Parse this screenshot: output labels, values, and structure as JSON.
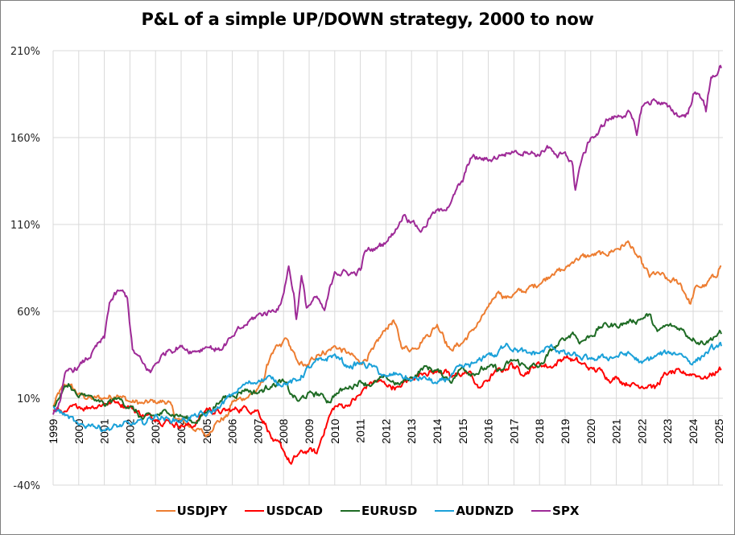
{
  "chart_data": {
    "type": "line",
    "title": "P&L of a simple UP/DOWN strategy, 2000 to now",
    "xlabel": "",
    "ylabel": "",
    "ylim": [
      -40,
      210
    ],
    "xlim": [
      1999,
      2025.2
    ],
    "y_ticks": [
      "210%",
      "160%",
      "110%",
      "60%",
      "10%",
      "-40%"
    ],
    "y_tick_values": [
      210,
      160,
      110,
      60,
      10,
      -40
    ],
    "x_ticks": [
      "1999",
      "2000",
      "2001",
      "2002",
      "2003",
      "2004",
      "2005",
      "2006",
      "2007",
      "2008",
      "2009",
      "2010",
      "2011",
      "2012",
      "2013",
      "2014",
      "2015",
      "2016",
      "2017",
      "2018",
      "2019",
      "2020",
      "2021",
      "2022",
      "2023",
      "2024",
      "2025"
    ],
    "grid": true,
    "zero_line": true,
    "legend_position": "bottom",
    "series": [
      {
        "name": "USDJPY",
        "color": "#ED7D31",
        "x": [
          1999,
          1999.3,
          1999.6,
          2000,
          2000.5,
          2001,
          2001.5,
          2002,
          2002.5,
          2003,
          2003.5,
          2003.8,
          2004.2,
          2004.6,
          2005,
          2005.3,
          2005.8,
          2006,
          2006.5,
          2007,
          2007.2,
          2007.5,
          2007.9,
          2008.1,
          2008.5,
          2008.9,
          2009.3,
          2009.8,
          2010,
          2010.5,
          2011,
          2011.5,
          2012,
          2012.3,
          2012.6,
          2013,
          2013.5,
          2014,
          2014.2,
          2014.5,
          2015,
          2015.3,
          2015.7,
          2016,
          2016.4,
          2016.7,
          2017,
          2017.5,
          2018,
          2018.5,
          2019,
          2019.4,
          2020,
          2020.5,
          2021,
          2021.3,
          2021.5,
          2021.7,
          2022,
          2022.3,
          2022.6,
          2023,
          2023.5,
          2023.7,
          2023.9,
          2024.1,
          2024.5,
          2024.8,
          2025,
          2025.1
        ],
        "y": [
          5,
          15,
          18,
          12,
          10,
          10,
          12,
          8,
          7,
          8,
          8,
          -2,
          -5,
          -8,
          -12,
          -5,
          0,
          8,
          10,
          15,
          20,
          35,
          40,
          45,
          32,
          28,
          35,
          38,
          40,
          36,
          30,
          38,
          50,
          55,
          40,
          38,
          45,
          52,
          48,
          38,
          42,
          48,
          55,
          62,
          72,
          68,
          70,
          72,
          76,
          82,
          84,
          90,
          92,
          93,
          96,
          98,
          100,
          94,
          88,
          80,
          82,
          78,
          76,
          70,
          64,
          74,
          75,
          80,
          84,
          86
        ]
      },
      {
        "name": "USDCAD",
        "color": "#FF0000",
        "x": [
          1999,
          1999.5,
          2000,
          2000.5,
          2001,
          2001.5,
          2002,
          2002.5,
          2003,
          2003.5,
          2004,
          2004.5,
          2005,
          2005.5,
          2006,
          2006.5,
          2007,
          2007.3,
          2007.6,
          2008,
          2008.3,
          2008.6,
          2009,
          2009.3,
          2009.5,
          2009.8,
          2010,
          2010.5,
          2011,
          2011.3,
          2011.6,
          2012,
          2012.5,
          2013,
          2013.5,
          2014,
          2014.3,
          2014.5,
          2015,
          2015.3,
          2015.6,
          2015.8,
          2016.2,
          2016.6,
          2016.9,
          2017,
          2017.3,
          2017.8,
          2018,
          2018.5,
          2019,
          2019.3,
          2019.6,
          2020,
          2020.5,
          2020.8,
          2021,
          2021.5,
          2022,
          2022.3,
          2022.5,
          2022.8,
          2023,
          2023.5,
          2024,
          2024.5,
          2025,
          2025.1
        ],
        "y": [
          3,
          2,
          5,
          5,
          7,
          8,
          5,
          0,
          -2,
          -3,
          -6,
          -6,
          4,
          2,
          3,
          5,
          3,
          -5,
          -15,
          -20,
          -28,
          -22,
          -20,
          -22,
          -12,
          0,
          5,
          6,
          12,
          18,
          20,
          18,
          16,
          22,
          25,
          25,
          26,
          22,
          24,
          25,
          16,
          18,
          24,
          26,
          30,
          28,
          24,
          28,
          30,
          28,
          34,
          32,
          30,
          27,
          25,
          20,
          22,
          18,
          17,
          18,
          16,
          22,
          24,
          25,
          24,
          22,
          26,
          27
        ]
      },
      {
        "name": "EURUSD",
        "color": "#1E6B24",
        "x": [
          1999,
          1999.3,
          1999.6,
          2000,
          2000.3,
          2000.7,
          2001,
          2001.5,
          2002,
          2002.5,
          2003,
          2003.5,
          2004,
          2004.5,
          2005,
          2005.5,
          2006,
          2006.5,
          2007,
          2007.5,
          2008,
          2008.3,
          2008.6,
          2009,
          2009.5,
          2009.8,
          2010,
          2010.5,
          2011,
          2011.5,
          2012,
          2012.5,
          2013,
          2013.5,
          2014,
          2014.3,
          2014.6,
          2015,
          2015.5,
          2016,
          2016.5,
          2017,
          2017.5,
          2018,
          2018.5,
          2019,
          2019.3,
          2019.6,
          2020,
          2020.5,
          2021,
          2021.5,
          2022,
          2022.3,
          2022.6,
          2023,
          2023.5,
          2024,
          2024.5,
          2024.8,
          2025,
          2025.1
        ],
        "y": [
          5,
          12,
          18,
          10,
          12,
          8,
          6,
          10,
          5,
          -2,
          0,
          2,
          0,
          -4,
          2,
          8,
          12,
          15,
          13,
          17,
          20,
          12,
          8,
          13,
          12,
          8,
          12,
          16,
          20,
          18,
          22,
          18,
          22,
          28,
          26,
          22,
          20,
          28,
          24,
          28,
          26,
          32,
          28,
          28,
          38,
          44,
          48,
          42,
          46,
          52,
          52,
          54,
          56,
          58,
          48,
          52,
          50,
          44,
          42,
          45,
          47,
          47
        ]
      },
      {
        "name": "AUDNZD",
        "color": "#1BA1D9",
        "x": [
          1999,
          1999.5,
          2000,
          2000.5,
          2001,
          2001.5,
          2002,
          2002.5,
          2003,
          2003.5,
          2004,
          2004.5,
          2005,
          2005.5,
          2006,
          2006.5,
          2007,
          2007.5,
          2008,
          2008.5,
          2009,
          2009.5,
          2010,
          2010.5,
          2011,
          2011.5,
          2012,
          2012.5,
          2013,
          2013.5,
          2014,
          2014.5,
          2015,
          2015.5,
          2016,
          2016.3,
          2016.7,
          2017,
          2017.5,
          2018,
          2018.5,
          2019,
          2019.5,
          2020,
          2020.5,
          2021,
          2021.5,
          2022,
          2022.5,
          2023,
          2023.5,
          2024,
          2024.5,
          2025,
          2025.1
        ],
        "y": [
          5,
          0,
          -6,
          -5,
          -8,
          -6,
          -5,
          -4,
          0,
          -2,
          -3,
          0,
          0,
          5,
          12,
          18,
          20,
          22,
          18,
          20,
          28,
          32,
          35,
          28,
          30,
          28,
          22,
          24,
          20,
          22,
          18,
          22,
          28,
          30,
          36,
          34,
          42,
          38,
          36,
          36,
          40,
          36,
          34,
          32,
          34,
          34,
          36,
          30,
          34,
          36,
          36,
          30,
          36,
          40,
          40
        ]
      },
      {
        "name": "SPX",
        "color": "#9E2A97",
        "x": [
          1999,
          1999.3,
          1999.5,
          2000,
          2000.5,
          2001,
          2001.2,
          2001.6,
          2001.9,
          2002.1,
          2002.5,
          2002.8,
          2003,
          2003.5,
          2004,
          2004.5,
          2005,
          2005.5,
          2006,
          2006.5,
          2007,
          2007.5,
          2007.9,
          2008.2,
          2008.4,
          2008.5,
          2008.7,
          2008.9,
          2009.3,
          2009.6,
          2010,
          2010.5,
          2010.8,
          2011,
          2011.2,
          2011.6,
          2012,
          2012.3,
          2012.7,
          2013,
          2013.4,
          2013.8,
          2014.2,
          2014.6,
          2015,
          2015.3,
          2015.7,
          2016,
          2016.5,
          2017,
          2017.5,
          2018,
          2018.3,
          2018.7,
          2019,
          2019.3,
          2019.4,
          2019.6,
          2020,
          2020.3,
          2020.6,
          2021,
          2021.5,
          2021.8,
          2022,
          2022.5,
          2023,
          2023.5,
          2023.8,
          2024,
          2024.4,
          2024.5,
          2024.7,
          2025,
          2025.1
        ],
        "y": [
          0,
          10,
          25,
          28,
          35,
          45,
          65,
          72,
          68,
          38,
          30,
          25,
          30,
          38,
          40,
          37,
          40,
          38,
          45,
          52,
          58,
          60,
          64,
          86,
          70,
          55,
          80,
          62,
          68,
          60,
          83,
          82,
          82,
          84,
          95,
          96,
          100,
          105,
          116,
          112,
          106,
          116,
          118,
          125,
          135,
          148,
          148,
          147,
          150,
          152,
          152,
          150,
          155,
          148,
          152,
          144,
          130,
          145,
          160,
          162,
          170,
          172,
          175,
          162,
          178,
          182,
          178,
          172,
          174,
          185,
          182,
          175,
          195,
          198,
          200
        ]
      }
    ]
  }
}
